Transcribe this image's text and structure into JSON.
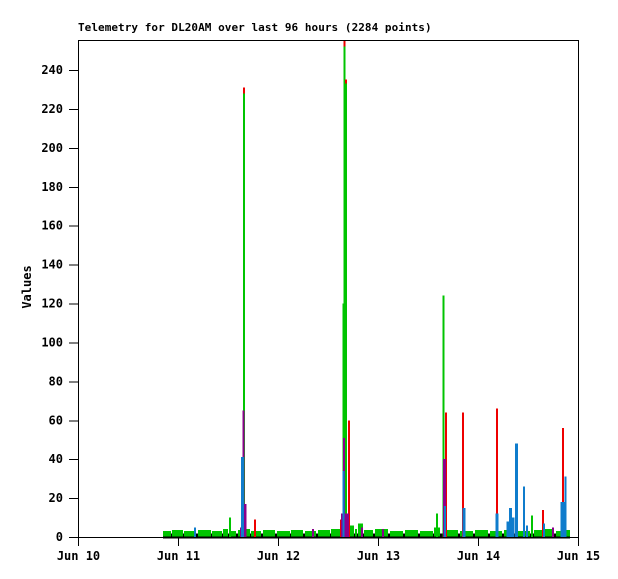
{
  "chart_data": {
    "type": "bar",
    "subtype": "impulse-spike-plot",
    "title": "Telemetry for DL20AM over last 96 hours (2284 points)",
    "ylabel": "Values",
    "xlabel": "",
    "grid": false,
    "legend": false,
    "x_axis": {
      "unit": "days-since-Jun-10",
      "range": [
        0,
        5
      ],
      "tick_positions": [
        0,
        1,
        2,
        3,
        4,
        5
      ],
      "tick_labels": [
        "Jun 10",
        "Jun 11",
        "Jun 12",
        "Jun 13",
        "Jun 14",
        "Jun 15"
      ]
    },
    "y_axis": {
      "min": 0,
      "max_tick": 240,
      "step": 20,
      "top_value": 255.5,
      "tick_values": [
        0,
        20,
        40,
        60,
        80,
        100,
        120,
        140,
        160,
        180,
        200,
        220,
        240
      ]
    },
    "colors": {
      "green": "#00c400",
      "red": "#ee0000",
      "blue": "#0f7ccc",
      "purple": "#8b008b",
      "axis": "#000000",
      "background": "#ffffff"
    },
    "data_extent_days": [
      0.85,
      4.92
    ],
    "baseline_bar": {
      "t0": 0.85,
      "t1": 4.92,
      "v": 1.8,
      "color_key": "axis"
    },
    "green_baseline_segments": [
      {
        "t0": 0.85,
        "t1": 0.93,
        "v": 3
      },
      {
        "t0": 0.94,
        "t1": 1.05,
        "v": 3.5
      },
      {
        "t0": 1.06,
        "t1": 1.18,
        "v": 3
      },
      {
        "t0": 1.2,
        "t1": 1.33,
        "v": 3.5
      },
      {
        "t0": 1.34,
        "t1": 1.44,
        "v": 3
      },
      {
        "t0": 1.45,
        "t1": 1.5,
        "v": 4
      },
      {
        "t0": 1.53,
        "t1": 1.58,
        "v": 3
      },
      {
        "t0": 1.6,
        "t1": 1.65,
        "v": 3.5
      },
      {
        "t0": 1.67,
        "t1": 1.72,
        "v": 4
      },
      {
        "t0": 1.73,
        "t1": 1.83,
        "v": 3
      },
      {
        "t0": 1.85,
        "t1": 1.97,
        "v": 3.5
      },
      {
        "t0": 1.99,
        "t1": 2.12,
        "v": 3
      },
      {
        "t0": 2.13,
        "t1": 2.25,
        "v": 3.5
      },
      {
        "t0": 2.27,
        "t1": 2.38,
        "v": 3
      },
      {
        "t0": 2.4,
        "t1": 2.52,
        "v": 3.5
      },
      {
        "t0": 2.53,
        "t1": 2.62,
        "v": 4
      },
      {
        "t0": 2.72,
        "t1": 2.76,
        "v": 6
      },
      {
        "t0": 2.77,
        "t1": 2.79,
        "v": 4
      },
      {
        "t0": 2.8,
        "t1": 2.85,
        "v": 7
      },
      {
        "t0": 2.86,
        "t1": 2.95,
        "v": 3.5
      },
      {
        "t0": 2.97,
        "t1": 3.1,
        "v": 4
      },
      {
        "t0": 3.12,
        "t1": 3.25,
        "v": 3
      },
      {
        "t0": 3.27,
        "t1": 3.4,
        "v": 3.5
      },
      {
        "t0": 3.42,
        "t1": 3.55,
        "v": 3
      },
      {
        "t0": 3.56,
        "t1": 3.62,
        "v": 5
      },
      {
        "t0": 3.69,
        "t1": 3.8,
        "v": 3.5
      },
      {
        "t0": 3.82,
        "t1": 3.95,
        "v": 3
      },
      {
        "t0": 3.97,
        "t1": 4.1,
        "v": 3.5
      },
      {
        "t0": 4.12,
        "t1": 4.24,
        "v": 3
      },
      {
        "t0": 4.26,
        "t1": 4.36,
        "v": 3.5
      },
      {
        "t0": 4.4,
        "t1": 4.52,
        "v": 3
      },
      {
        "t0": 4.56,
        "t1": 4.64,
        "v": 3.5
      },
      {
        "t0": 4.67,
        "t1": 4.76,
        "v": 4
      },
      {
        "t0": 4.78,
        "t1": 4.83,
        "v": 3
      },
      {
        "t0": 4.86,
        "t1": 4.92,
        "v": 3.5
      }
    ],
    "series": [
      {
        "name": "green",
        "color_key": "green",
        "bars": [
          {
            "t": 1.52,
            "v": 10
          },
          {
            "t": 1.66,
            "v": 228
          },
          {
            "t": 2.655,
            "v": 120
          },
          {
            "t": 2.665,
            "v": 252
          },
          {
            "t": 2.678,
            "v": 233
          },
          {
            "t": 3.59,
            "v": 12
          },
          {
            "t": 3.655,
            "v": 124
          },
          {
            "t": 4.54,
            "v": 11
          }
        ]
      },
      {
        "name": "red",
        "color_key": "red",
        "bars": [
          {
            "t": 1.66,
            "v": 231,
            "v0": 228
          },
          {
            "t": 2.665,
            "v": 255,
            "v0": 252
          },
          {
            "t": 2.678,
            "v": 235,
            "v0": 233
          },
          {
            "t": 1.77,
            "v": 9
          },
          {
            "t": 2.63,
            "v": 9
          },
          {
            "t": 2.71,
            "v": 60
          },
          {
            "t": 3.68,
            "v": 64
          },
          {
            "t": 3.85,
            "v": 64
          },
          {
            "t": 4.19,
            "v": 66
          },
          {
            "t": 4.65,
            "v": 14
          },
          {
            "t": 4.85,
            "v": 56
          }
        ]
      },
      {
        "name": "purple",
        "color_key": "purple",
        "bars": [
          {
            "t": 1.655,
            "v": 65
          },
          {
            "t": 1.66,
            "v": 17,
            "w": 5
          },
          {
            "t": 2.66,
            "v": 51
          },
          {
            "t": 2.67,
            "v": 12,
            "w": 8
          },
          {
            "t": 3.665,
            "v": 40,
            "w": 3
          },
          {
            "t": 1.63,
            "v": 5
          },
          {
            "t": 2.35,
            "v": 4
          },
          {
            "t": 2.84,
            "v": 5
          },
          {
            "t": 3.05,
            "v": 4
          },
          {
            "t": 4.33,
            "v": 5
          },
          {
            "t": 4.75,
            "v": 5
          }
        ]
      },
      {
        "name": "blue",
        "color_key": "blue",
        "bars": [
          {
            "t": 1.645,
            "v": 41,
            "w": 3
          },
          {
            "t": 2.653,
            "v": 34
          },
          {
            "t": 1.17,
            "v": 5
          },
          {
            "t": 3.672,
            "v": 16
          },
          {
            "t": 3.86,
            "v": 15,
            "w": 3
          },
          {
            "t": 4.19,
            "v": 12,
            "w": 3
          },
          {
            "t": 4.3,
            "v": 8,
            "w": 3
          },
          {
            "t": 4.325,
            "v": 15,
            "w": 3
          },
          {
            "t": 4.35,
            "v": 10,
            "w": 3
          },
          {
            "t": 4.385,
            "v": 48,
            "w": 3
          },
          {
            "t": 4.46,
            "v": 26
          },
          {
            "t": 4.49,
            "v": 6
          },
          {
            "t": 4.66,
            "v": 7
          },
          {
            "t": 4.845,
            "v": 18,
            "w": 4
          },
          {
            "t": 4.875,
            "v": 31
          }
        ]
      }
    ]
  }
}
